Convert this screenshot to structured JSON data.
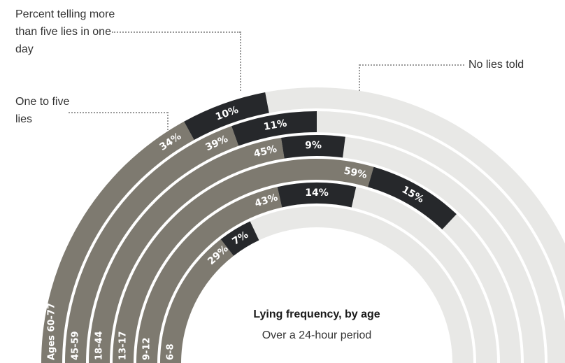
{
  "chart_data": {
    "type": "radial-bar",
    "title": "Lying frequency, by age",
    "subtitle": "Over a 24-hour period",
    "legend": {
      "more_than_five": "Percent telling more than five lies in one day",
      "one_to_five": "One to five lies",
      "none": "No lies told"
    },
    "rings": [
      {
        "age": "Ages 60-77",
        "one_to_five": 34,
        "one_to_five_label": "34%",
        "more_than_five": 10,
        "more_than_five_label": "10%"
      },
      {
        "age": "45-59",
        "one_to_five": 39,
        "one_to_five_label": "39%",
        "more_than_five": 11,
        "more_than_five_label": "11%"
      },
      {
        "age": "18-44",
        "one_to_five": 45,
        "one_to_five_label": "45%",
        "more_than_five": 9,
        "more_than_five_label": "9%"
      },
      {
        "age": "13-17",
        "one_to_five": 59,
        "one_to_five_label": "59%",
        "more_than_five": 15,
        "more_than_five_label": "15%"
      },
      {
        "age": "9-12",
        "one_to_five": 43,
        "one_to_five_label": "43%",
        "more_than_five": 14,
        "more_than_five_label": "14%"
      },
      {
        "age": "6-8",
        "one_to_five": 29,
        "one_to_five_label": "29%",
        "more_than_five": 7,
        "more_than_five_label": "7%"
      }
    ],
    "colors": {
      "one_to_five": "#7e7a70",
      "more_than_five": "#26282b",
      "none": "#e8e8e6",
      "label_light": "#ffffff"
    }
  }
}
